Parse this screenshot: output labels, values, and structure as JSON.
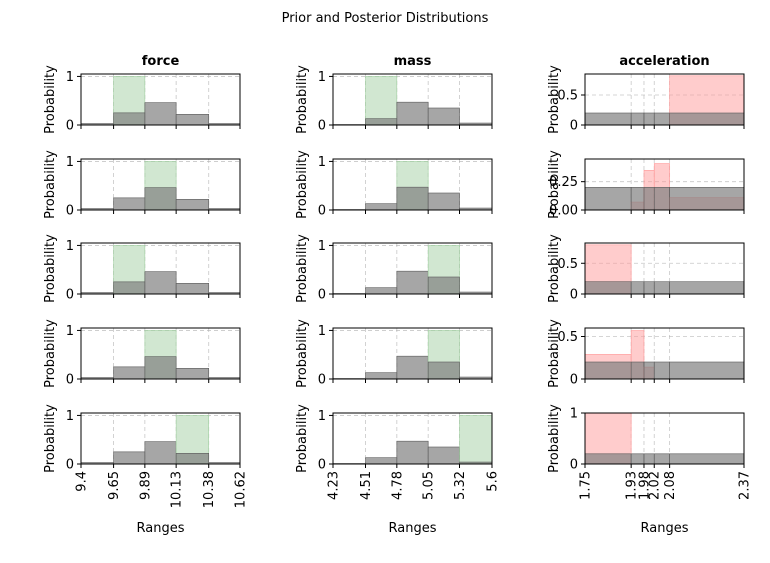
{
  "figure": {
    "title": "Prior and Posterior Distributions"
  },
  "colors": {
    "prior": "#808080",
    "posterior_green": "#a3d0a3",
    "posterior_red": "#ff9999",
    "grid": "#b0b0b0"
  },
  "chart_data": [
    {
      "type": "bar",
      "variable": "force",
      "column_title": "force",
      "xlabel": "Ranges",
      "ylabel": "Probability",
      "edges": [
        9.4,
        9.65,
        9.89,
        10.13,
        10.38,
        10.62
      ],
      "tick_labels": [
        "9.4",
        "9.65",
        "9.89",
        "10.13",
        "10.38",
        "10.62"
      ],
      "yticks": [
        0,
        1
      ],
      "ylim": [
        0,
        1.05
      ],
      "posterior_color": "green",
      "rows": [
        {
          "prior": [
            0.03,
            0.25,
            0.46,
            0.22,
            0.03
          ],
          "posterior": [
            0,
            1,
            0,
            0,
            0
          ]
        },
        {
          "prior": [
            0.03,
            0.25,
            0.46,
            0.22,
            0.03
          ],
          "posterior": [
            0,
            0,
            1,
            0,
            0
          ]
        },
        {
          "prior": [
            0.03,
            0.25,
            0.46,
            0.22,
            0.03
          ],
          "posterior": [
            0,
            1,
            0,
            0,
            0
          ]
        },
        {
          "prior": [
            0.03,
            0.25,
            0.46,
            0.22,
            0.03
          ],
          "posterior": [
            0,
            0,
            1,
            0,
            0
          ]
        },
        {
          "prior": [
            0.03,
            0.25,
            0.46,
            0.22,
            0.03
          ],
          "posterior": [
            0,
            0,
            0,
            1,
            0
          ]
        }
      ]
    },
    {
      "type": "bar",
      "variable": "mass",
      "column_title": "mass",
      "xlabel": "Ranges",
      "ylabel": "Probability",
      "edges": [
        4.23,
        4.51,
        4.78,
        5.05,
        5.32,
        5.6
      ],
      "tick_labels": [
        "4.23",
        "4.51",
        "4.78",
        "5.05",
        "5.32",
        "5.6"
      ],
      "yticks": [
        0,
        1
      ],
      "ylim": [
        0,
        1.05
      ],
      "posterior_color": "green",
      "rows": [
        {
          "prior": [
            0.01,
            0.13,
            0.47,
            0.35,
            0.04
          ],
          "posterior": [
            0,
            1,
            0,
            0,
            0
          ]
        },
        {
          "prior": [
            0.01,
            0.13,
            0.47,
            0.35,
            0.04
          ],
          "posterior": [
            0,
            0,
            1,
            0,
            0
          ]
        },
        {
          "prior": [
            0.01,
            0.13,
            0.47,
            0.35,
            0.04
          ],
          "posterior": [
            0,
            0,
            0,
            1,
            0
          ]
        },
        {
          "prior": [
            0.01,
            0.13,
            0.47,
            0.35,
            0.04
          ],
          "posterior": [
            0,
            0,
            0,
            1,
            0
          ]
        },
        {
          "prior": [
            0.01,
            0.13,
            0.47,
            0.35,
            0.04
          ],
          "posterior": [
            0,
            0,
            0,
            0,
            1
          ]
        }
      ]
    },
    {
      "type": "bar",
      "variable": "acceleration",
      "column_title": "acceleration",
      "xlabel": "Ranges",
      "ylabel": "Probability",
      "edges": [
        1.75,
        1.93,
        1.98,
        2.02,
        2.08,
        2.37
      ],
      "tick_labels": [
        "1.75",
        "1.93",
        "1.98",
        "2.02",
        "2.08",
        "2.37"
      ],
      "ylim": [
        0,
        1.05
      ],
      "posterior_color": "red",
      "rows": [
        {
          "yticks": [
            0,
            0.5
          ],
          "yticklabels": [
            "0",
            "0.5"
          ],
          "ylim": [
            0,
            0.85
          ],
          "prior": [
            0.2,
            0.2,
            0.2,
            0.2,
            0.2
          ],
          "posterior": [
            0,
            0,
            0,
            0,
            0.82
          ]
        },
        {
          "yticks": [
            0,
            0.25
          ],
          "yticklabels": [
            "0.00",
            "0.25"
          ],
          "ylim": [
            0,
            0.45
          ],
          "prior": [
            0.2,
            0.2,
            0.2,
            0.2,
            0.2
          ],
          "posterior": [
            0,
            0.07,
            0.35,
            0.41,
            0.11
          ]
        },
        {
          "yticks": [
            0,
            0.5
          ],
          "yticklabels": [
            "0",
            "0.5"
          ],
          "ylim": [
            0,
            0.83
          ],
          "prior": [
            0.2,
            0.2,
            0.2,
            0.2,
            0.2
          ],
          "posterior": [
            0.8,
            0,
            0,
            0,
            0
          ]
        },
        {
          "yticks": [
            0,
            0.5
          ],
          "yticklabels": [
            "0",
            "0.5"
          ],
          "ylim": [
            0,
            0.6
          ],
          "prior": [
            0.2,
            0.2,
            0.2,
            0.2,
            0.2
          ],
          "posterior": [
            0.29,
            0.57,
            0.14,
            0,
            0
          ]
        },
        {
          "yticks": [
            0,
            1
          ],
          "yticklabels": [
            "0",
            "1"
          ],
          "ylim": [
            0,
            1.0
          ],
          "prior": [
            0.2,
            0.2,
            0.2,
            0.2,
            0.2
          ],
          "posterior": [
            1,
            0,
            0,
            0,
            0
          ]
        }
      ]
    }
  ]
}
